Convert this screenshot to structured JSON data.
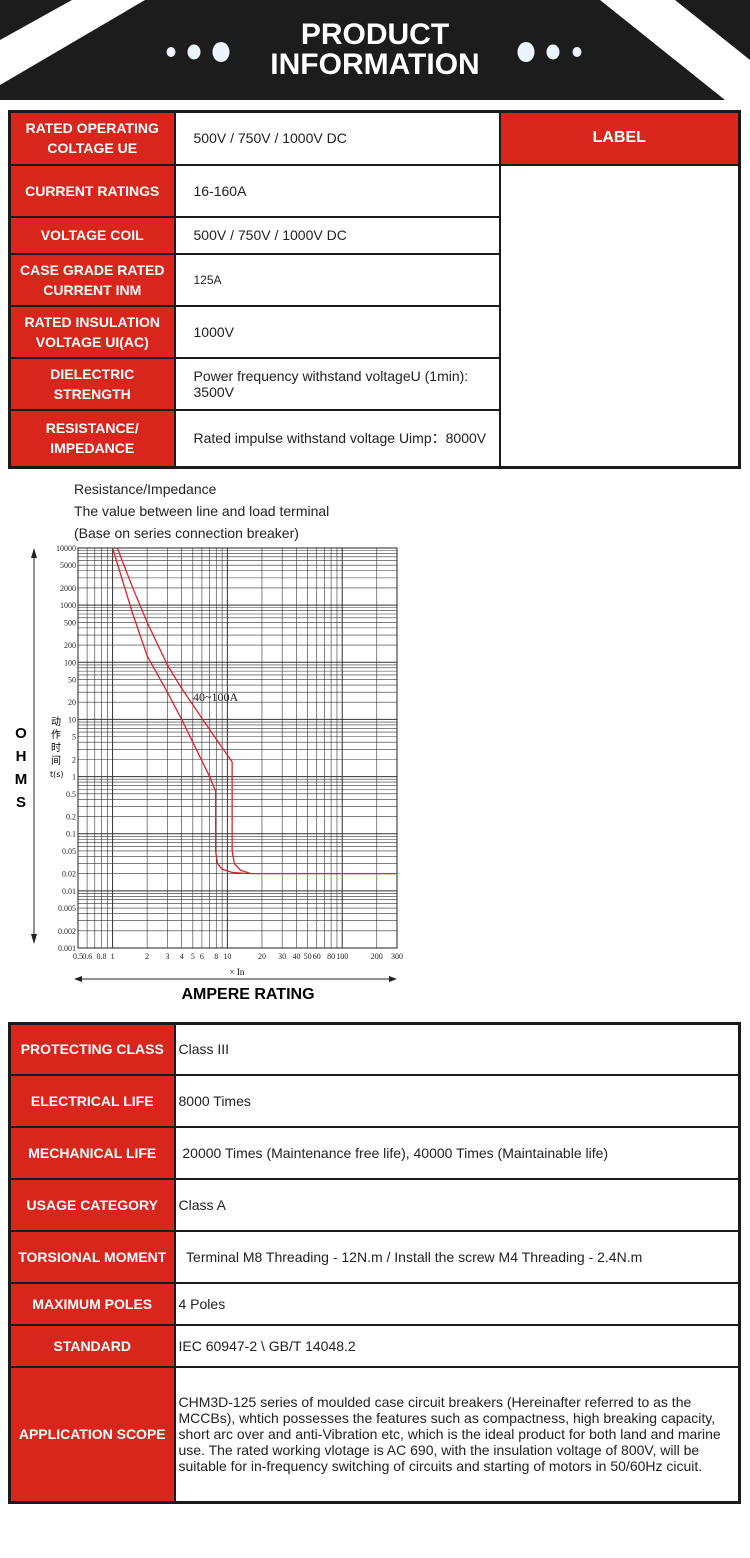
{
  "header": {
    "line1": "PRODUCT",
    "line2": "INFORMATION"
  },
  "spec_table": {
    "label_header": "LABEL",
    "rows": [
      {
        "key": "RATED OPERATING COLTAGE UE",
        "value": "500V / 750V / 1000V DC"
      },
      {
        "key": "CURRENT RATINGS",
        "value": "16-160A"
      },
      {
        "key": "VOLTAGE COIL",
        "value": "500V / 750V / 1000V DC"
      },
      {
        "key": "CASE GRADE RATED CURRENT INM",
        "value": "125A"
      },
      {
        "key": "RATED INSULATION VOLTAGE UI(AC)",
        "value": "1000V"
      },
      {
        "key": "DIELECTRIC STRENGTH",
        "value": "Power frequency withstand voltageU (1min): 3500V"
      },
      {
        "key": "RESISTANCE/ IMPEDANCE",
        "value": "Rated impulse withstand voltage Uimp：8000V"
      }
    ]
  },
  "chart_notes": [
    "Resistance/Impedance",
    "The value between line and load terminal",
    "(Base on series connection breaker)"
  ],
  "chart_data": {
    "type": "line",
    "xscale": "log",
    "yscale": "log",
    "xlim": [
      0.5,
      300
    ],
    "ylim": [
      0.001,
      10000
    ],
    "xticks": [
      "0.5",
      "0.6",
      "0.8",
      "1",
      "2",
      "3",
      "4",
      "5",
      "6",
      "8",
      "10",
      "20",
      "30",
      "40",
      "50",
      "60",
      "80",
      "100",
      "200",
      "300"
    ],
    "yticks": [
      "10000",
      "5000",
      "2000",
      "1000",
      "500",
      "200",
      "100",
      "50",
      "20",
      "10",
      "5",
      "2",
      "1",
      "0.5",
      "0.2",
      "0.1",
      "0.05",
      "0.02",
      "0.01",
      "0.005",
      "0.002",
      "0.001"
    ],
    "xlabel": "× In",
    "ylabel": "动作时间 t(s)",
    "outer_ylabel": "OHMS",
    "outer_xlabel": "AMPERE RATING",
    "annotation": "40~100A",
    "grid": true,
    "color": "#e0202a",
    "series": [
      {
        "x": [
          1,
          1.5,
          2,
          3,
          4,
          5,
          7,
          7.9,
          7.9,
          8.2,
          9,
          11,
          15
        ],
        "y": [
          10000,
          700,
          130,
          30,
          10,
          4,
          1,
          0.55,
          0.05,
          0.03,
          0.024,
          0.021,
          0.02
        ]
      },
      {
        "x": [
          1.1,
          1.5,
          2,
          3,
          4,
          5,
          8,
          11,
          11,
          11.5,
          13,
          16,
          300
        ],
        "y": [
          10000,
          2000,
          500,
          90,
          35,
          18,
          4.5,
          1.8,
          0.05,
          0.03,
          0.023,
          0.02,
          0.02
        ]
      }
    ]
  },
  "details_table": {
    "rows": [
      {
        "key": "PROTECTING CLASS",
        "value": "Class III"
      },
      {
        "key": "ELECTRICAL LIFE",
        "value": "8000 Times"
      },
      {
        "key": "MECHANICAL LIFE",
        "value": " 20000 Times (Maintenance free life), 40000 Times (Maintainable life)"
      },
      {
        "key": "USAGE CATEGORY",
        "value": "Class A"
      },
      {
        "key": "TORSIONAL MOMENT",
        "value": "  Terminal M8 Threading - 12N.m / Install the screw M4 Threading - 2.4N.m"
      },
      {
        "key": "MAXIMUM POLES",
        "value": "4 Poles"
      },
      {
        "key": "STANDARD",
        "value": "IEC 60947-2 \\ GB/T 14048.2"
      },
      {
        "key": "APPLICATION SCOPE",
        "value": " CHM3D-125 series of moulded case circuit breakers (Hereinafter referred to as the MCCBs), whtich possesses the features such as compactness, high breaking capacity, short arc over and anti-Vibration etc, which is the ideal product for both land and marine use. The rated working vlotage is AC 690, with the insulation voltage of 800V, will be suitable for in-frequency switching of circuits and starting of motors in 50/60Hz cicuit."
      }
    ]
  }
}
